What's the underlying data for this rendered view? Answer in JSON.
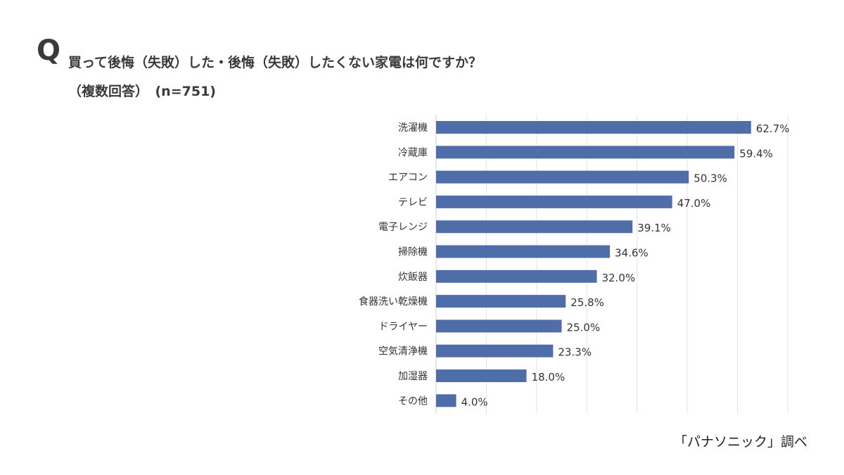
{
  "header": {
    "q_mark": "Q",
    "title": "買って後悔（失敗）した・後悔（失敗）したくない家電は何ですか？",
    "subtitle": "（複数回答）　(n=751)"
  },
  "source_note": "「パナソニック」調べ",
  "colors": {
    "bar": "#4f6ea9",
    "grid": "#e3e3e3",
    "text": "#333333"
  },
  "chart_data": {
    "type": "bar",
    "orientation": "horizontal",
    "categories": [
      "洗濯機",
      "冷蔵庫",
      "エアコン",
      "テレビ",
      "電子レンジ",
      "掃除機",
      "炊飯器",
      "食器洗い乾燥機",
      "ドライヤー",
      "空気清浄機",
      "加湿器",
      "その他"
    ],
    "values": [
      62.7,
      59.4,
      50.3,
      47.0,
      39.1,
      34.6,
      32.0,
      25.8,
      25.0,
      23.3,
      18.0,
      4.0
    ],
    "value_labels": [
      "62.7%",
      "59.4%",
      "50.3%",
      "47.0%",
      "39.1%",
      "34.6%",
      "32.0%",
      "25.8%",
      "25.0%",
      "23.3%",
      "18.0%",
      "4.0%"
    ],
    "xlim": [
      0,
      70
    ],
    "grid": true,
    "legend": false
  }
}
